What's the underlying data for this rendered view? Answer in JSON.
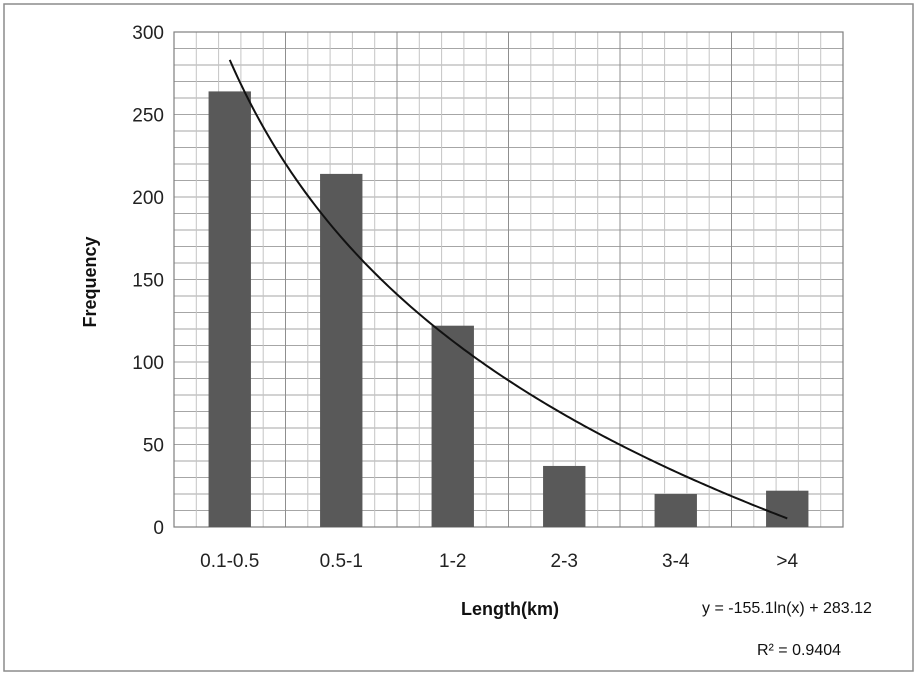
{
  "chart_data": {
    "type": "bar",
    "categories": [
      "0.1-0.5",
      "0.5-1",
      "1-2",
      "2-3",
      "3-4",
      ">4"
    ],
    "values": [
      264,
      214,
      122,
      37,
      20,
      22
    ],
    "xlabel": "Length(km)",
    "ylabel": "Frequency",
    "ylim": [
      0,
      300
    ],
    "yticks": [
      0,
      50,
      100,
      150,
      200,
      250,
      300
    ],
    "grid": true,
    "legend": "none",
    "bar_color": "#595959",
    "trendline": {
      "type": "logarithmic",
      "a": -155.1,
      "b": 283.12,
      "equation": "y = -155.1ln(x) + 283.12",
      "r_squared": "R² = 0.9404"
    }
  }
}
